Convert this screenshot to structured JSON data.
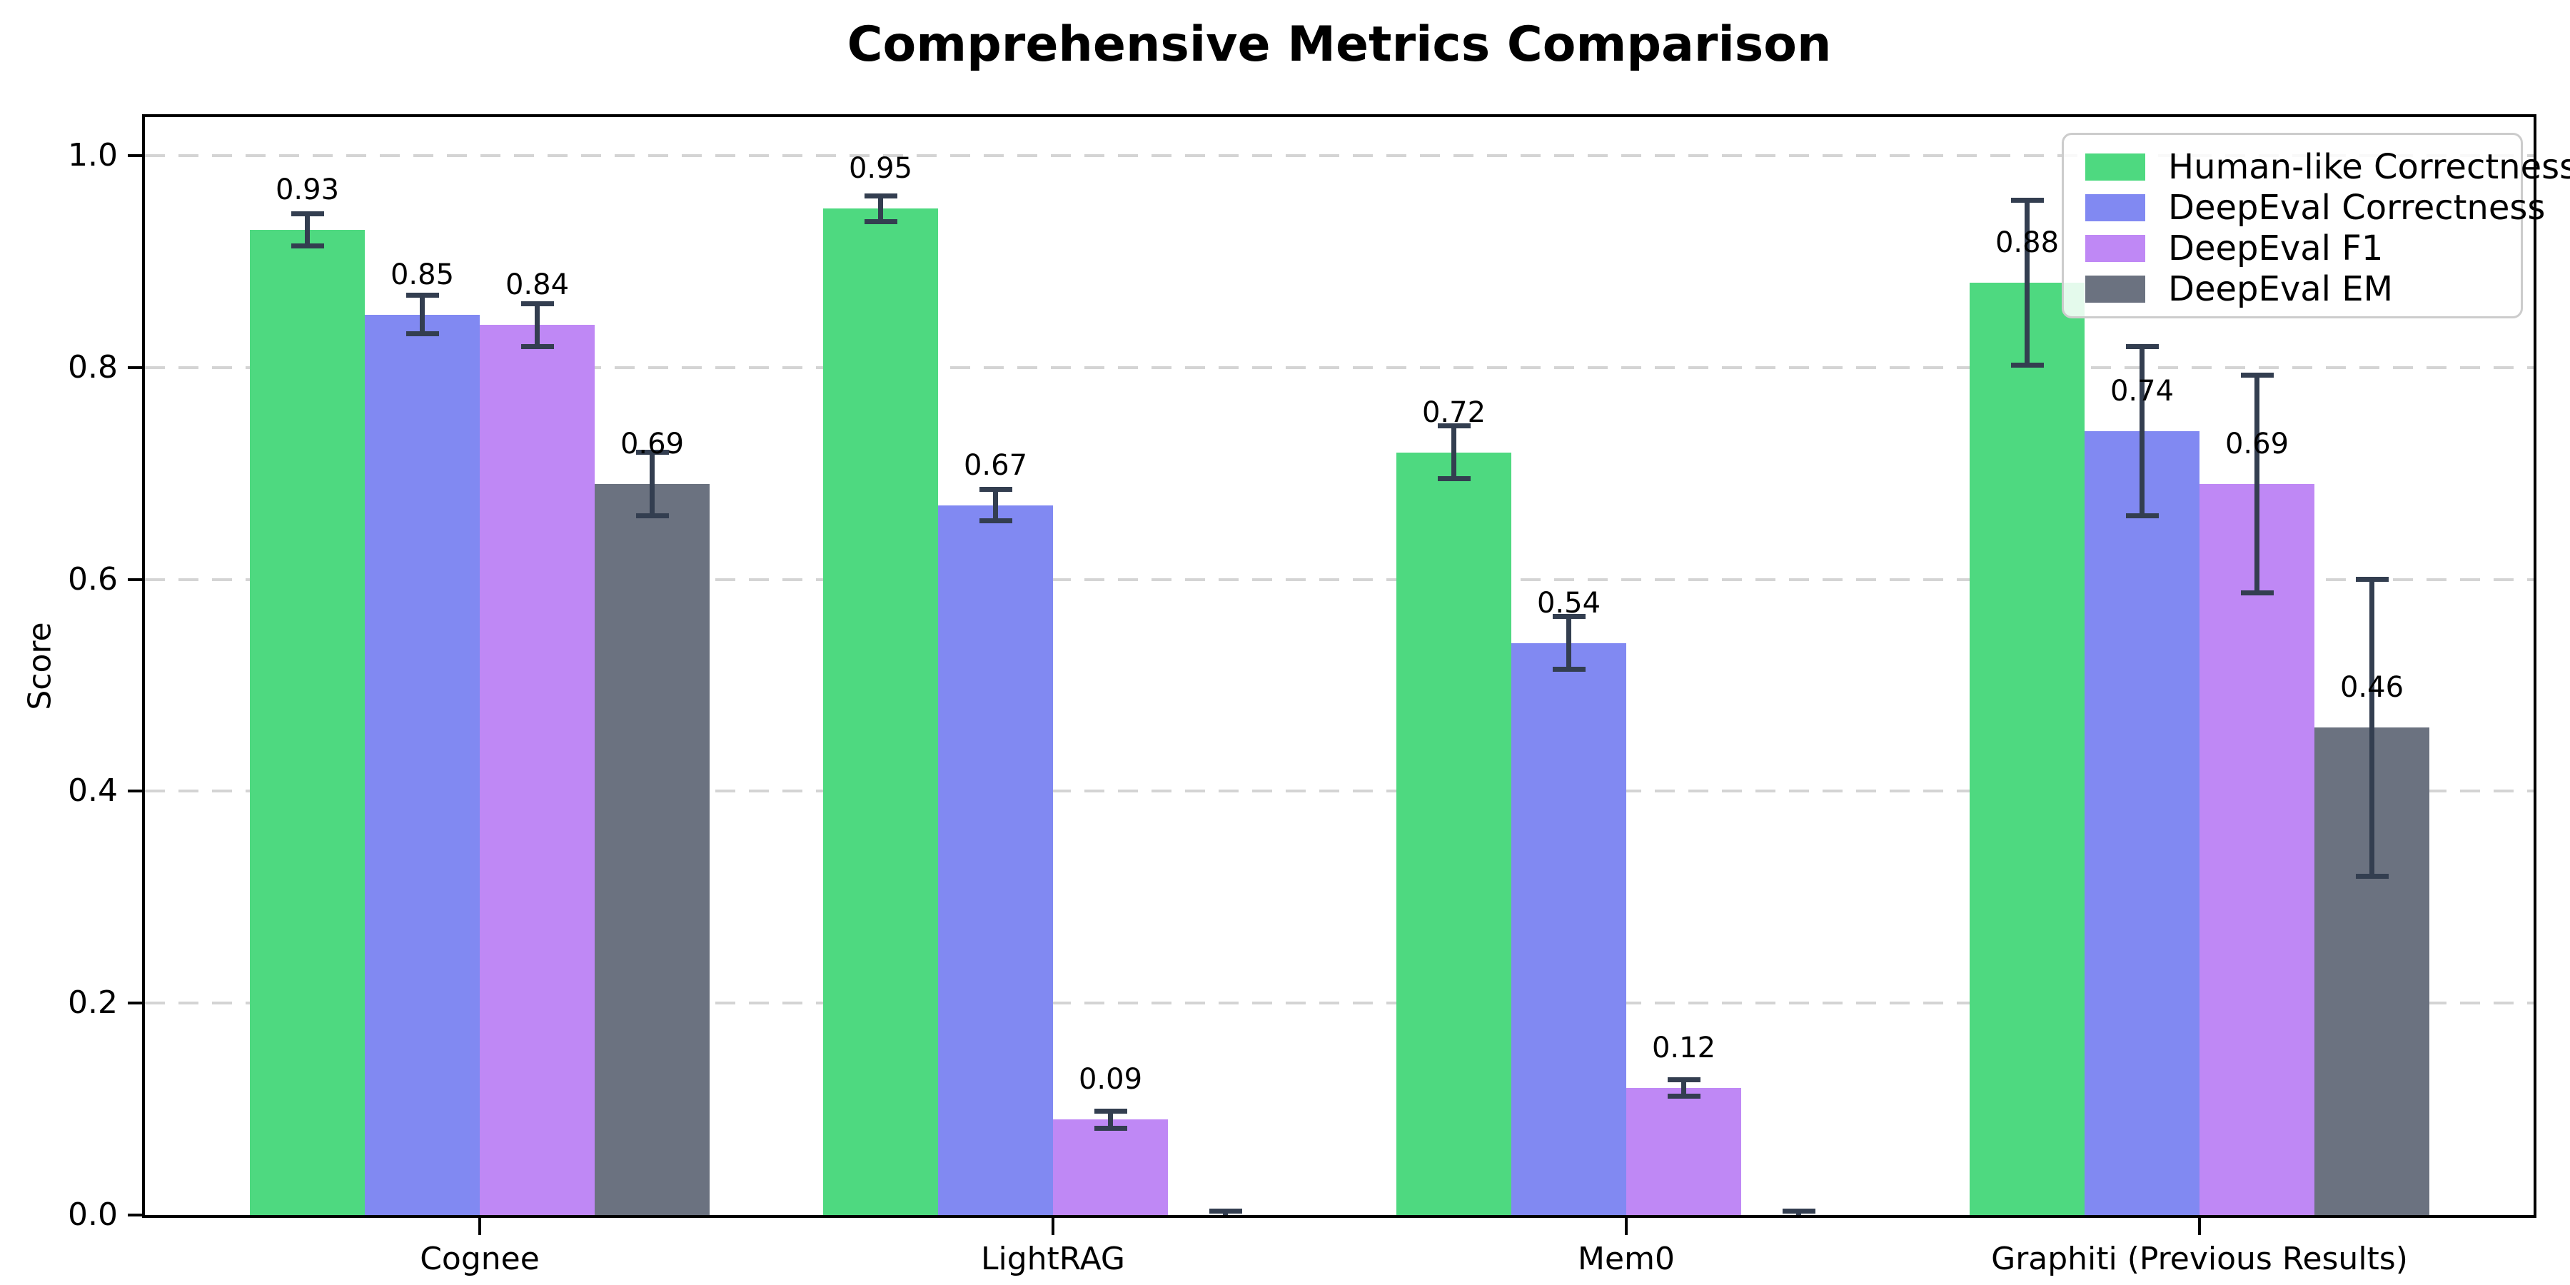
{
  "chart_data": {
    "type": "bar",
    "title": "Comprehensive Metrics Comparison",
    "ylabel": "Score",
    "xlabel": "",
    "categories": [
      "Cognee",
      "LightRAG",
      "Mem0",
      "Graphiti (Previous Results)"
    ],
    "series": [
      {
        "name": "Human-like Correctness",
        "color": "#4ed980",
        "values": [
          0.93,
          0.95,
          0.72,
          0.88
        ],
        "errors": [
          0.015,
          0.012,
          0.025,
          0.078
        ],
        "labels": [
          "0.93",
          "0.95",
          "0.72",
          "0.88"
        ]
      },
      {
        "name": "DeepEval Correctness",
        "color": "#8189f2",
        "values": [
          0.85,
          0.67,
          0.54,
          0.74
        ],
        "errors": [
          0.018,
          0.015,
          0.025,
          0.08
        ],
        "labels": [
          "0.85",
          "0.67",
          "0.54",
          "0.74"
        ]
      },
      {
        "name": "DeepEval F1",
        "color": "#bf88f5",
        "values": [
          0.84,
          0.09,
          0.12,
          0.69
        ],
        "errors": [
          0.02,
          0.008,
          0.008,
          0.103
        ],
        "labels": [
          "0.84",
          "0.09",
          "0.12",
          "0.69"
        ]
      },
      {
        "name": "DeepEval EM",
        "color": "#6b7280",
        "values": [
          0.69,
          0.0,
          0.0,
          0.46
        ],
        "errors": [
          0.03,
          0.004,
          0.004,
          0.14
        ],
        "labels": [
          "0.69",
          "",
          "",
          "0.46"
        ]
      }
    ],
    "yticks": [
      "0.0",
      "0.2",
      "0.4",
      "0.6",
      "0.8",
      "1.0"
    ],
    "ylim": [
      0,
      1.05
    ],
    "grid": "dashed-horizontal",
    "legend_position": "upper-right",
    "colors": {
      "error_bar": "#333e50",
      "grid": "#d4d4d4",
      "spine": "#000000"
    }
  }
}
